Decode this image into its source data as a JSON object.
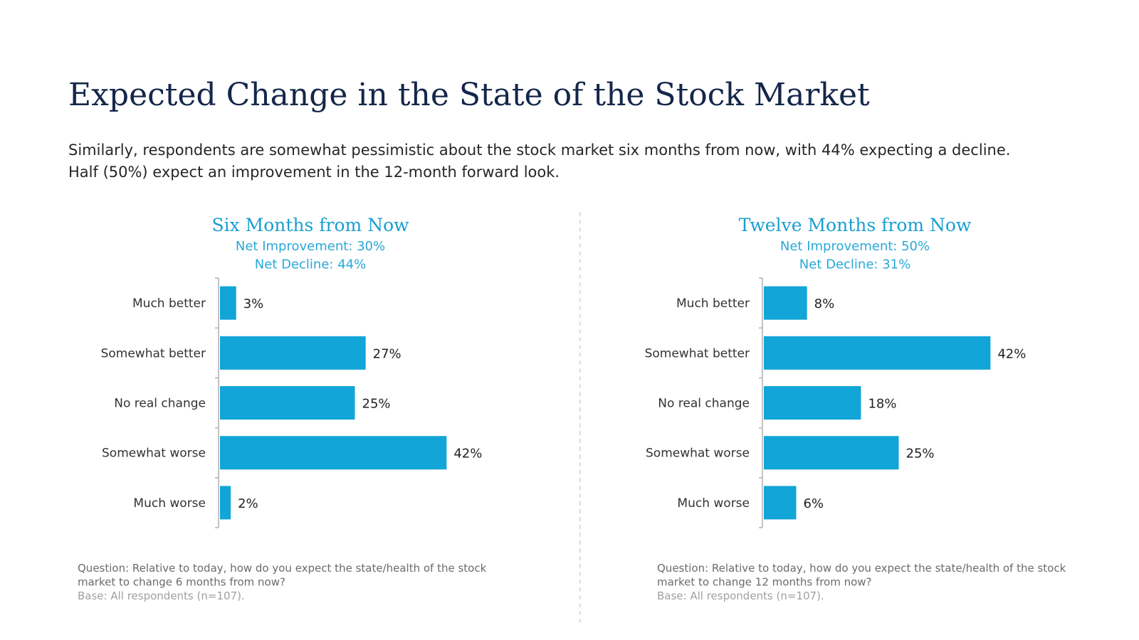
{
  "header": {
    "title": "Expected Change in the State of the Stock Market",
    "subtitle": [
      "Similarly, respondents are somewhat pessimistic about the stock market six months from now, with 44% expecting a decline.",
      "Half  (50%) expect an improvement in the 12-month forward look."
    ]
  },
  "chart_data": [
    {
      "type": "barh",
      "title": "Six Months from Now",
      "annotations": [
        "Net Improvement: 30%",
        "Net Decline: 44%"
      ],
      "categories": [
        "Much better",
        "Somewhat better",
        "No real change",
        "Somewhat worse",
        "Much worse"
      ],
      "values": [
        3,
        27,
        25,
        42,
        2
      ],
      "value_labels": [
        "3%",
        "27%",
        "25%",
        "42%",
        "2%"
      ],
      "color": "#12a5d7",
      "xlim": [
        0,
        50
      ],
      "notes": [
        "Question: Relative to today, how do you expect the state/health of the stock",
        "market to change 6 months from now?",
        "Base: All respondents (n=107)."
      ]
    },
    {
      "type": "barh",
      "title": "Twelve Months from Now",
      "annotations": [
        "Net Improvement: 50%",
        "Net Decline: 31%"
      ],
      "categories": [
        "Much better",
        "Somewhat better",
        "No real change",
        "Somewhat worse",
        "Much worse"
      ],
      "values": [
        8,
        42,
        18,
        25,
        6
      ],
      "value_labels": [
        "8%",
        "42%",
        "18%",
        "25%",
        "6%"
      ],
      "color": "#12a5d7",
      "xlim": [
        0,
        50
      ],
      "notes": [
        "Question: Relative to today, how do you expect the state/health of the stock",
        "market to change 12 months from now?",
        "Base: All respondents (n=107)."
      ]
    }
  ]
}
